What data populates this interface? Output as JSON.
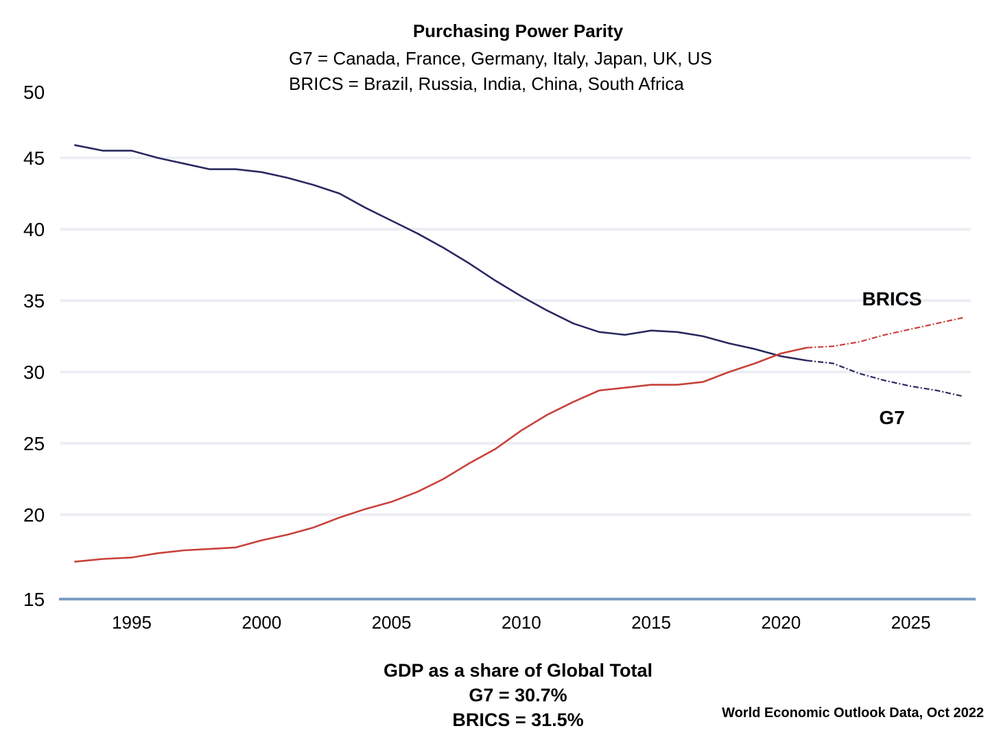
{
  "chart_data": {
    "type": "line",
    "title": "Purchasing Power Parity",
    "subtitle_lines": [
      "G7 = Canada, France, Germany, Italy, Japan, UK, US",
      "BRICS = Brazil, Russia, India, China, South Africa"
    ],
    "xlabel": "",
    "ylabel": "",
    "ylim": [
      15,
      50
    ],
    "yticks": [
      15,
      20,
      25,
      30,
      35,
      40,
      45,
      50
    ],
    "xticks": [
      1995,
      2000,
      2005,
      2010,
      2015,
      2020,
      2025
    ],
    "grid": true,
    "x": [
      1993,
      1994,
      1995,
      1996,
      1997,
      1998,
      1999,
      2000,
      2001,
      2002,
      2003,
      2004,
      2005,
      2006,
      2007,
      2008,
      2009,
      2010,
      2011,
      2012,
      2013,
      2014,
      2015,
      2016,
      2017,
      2018,
      2019,
      2020,
      2021,
      2022,
      2023,
      2024,
      2025,
      2026,
      2027
    ],
    "projection_start": 2021,
    "series": [
      {
        "name": "G7",
        "label": "G7",
        "color": "#2a2960",
        "values": [
          45.9,
          45.5,
          45.5,
          45.0,
          44.6,
          44.2,
          44.2,
          44.0,
          43.6,
          43.1,
          42.5,
          41.5,
          40.6,
          39.7,
          38.7,
          37.6,
          36.4,
          35.3,
          34.3,
          33.4,
          32.8,
          32.6,
          32.9,
          32.8,
          32.5,
          32.0,
          31.6,
          31.1,
          30.8,
          30.6,
          29.9,
          29.4,
          29.0,
          28.7,
          28.3
        ]
      },
      {
        "name": "BRICS",
        "label": "BRICS",
        "color": "#c8413a",
        "values": [
          16.7,
          16.9,
          17.0,
          17.3,
          17.5,
          17.6,
          17.7,
          18.2,
          18.6,
          19.1,
          19.8,
          20.4,
          20.9,
          21.6,
          22.5,
          23.6,
          24.6,
          25.9,
          27.0,
          27.9,
          28.7,
          28.9,
          29.1,
          29.1,
          29.3,
          30.0,
          30.6,
          31.3,
          31.7,
          31.8,
          32.1,
          32.6,
          33.0,
          33.4,
          33.8
        ]
      }
    ],
    "footer_lines": [
      "GDP as a share of Global Total",
      "G7 = 30.7%",
      "BRICS = 31.5%"
    ],
    "source": "World Economic Outlook Data, Oct 2022"
  }
}
